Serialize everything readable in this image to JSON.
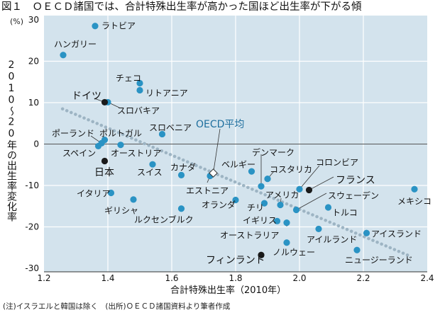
{
  "chart_data": {
    "type": "scatter",
    "title": "図１　ＯＥＣＤ諸国では、合計特殊出生率が高かった国ほど出生率が下がる傾",
    "xlabel": "合計特殊出生率（2010年）",
    "ylabel": "2010〜20年の出生率変化率",
    "yunit": "(%)",
    "xlim": [
      1.2,
      2.4
    ],
    "ylim": [
      -30,
      30
    ],
    "xticks": [
      "1.2",
      "1.4",
      "1.6",
      "1.8",
      "2.0",
      "2.2",
      "2.4"
    ],
    "yticks": [
      "30",
      "20",
      "10",
      "0",
      "-10",
      "-20",
      "-30"
    ],
    "grid": true,
    "colors": {
      "point": "#2a93c4",
      "highlight": "#1a1a1a",
      "background": "#d3e3ed",
      "trend": "#9db4c3",
      "oecd_label": "#1f6f9e"
    },
    "trendline": {
      "x": [
        1.258,
        2.338
      ],
      "y": [
        8.5,
        -26.8
      ]
    },
    "points": [
      {
        "name": "ラトビア",
        "x": 1.36,
        "y": 28.5
      },
      {
        "name": "ハンガリー",
        "x": 1.26,
        "y": 21.5
      },
      {
        "name": "チェコ",
        "x": 1.5,
        "y": 14.7
      },
      {
        "name": "リトアニア",
        "x": 1.5,
        "y": 13.0
      },
      {
        "name": "スロバキア",
        "x": 1.4,
        "y": 10.1
      },
      {
        "name": "ドイツ",
        "x": 1.39,
        "y": 10.1,
        "highlight": true
      },
      {
        "name": "スロベニア",
        "x": 1.57,
        "y": 2.4
      },
      {
        "name": "ポルトガル",
        "x": 1.39,
        "y": 1.0
      },
      {
        "name": "ポーランド",
        "x": 1.38,
        "y": 0.2
      },
      {
        "name": "スペイン",
        "x": 1.37,
        "y": -0.5
      },
      {
        "name": "オーストリア",
        "x": 1.44,
        "y": -0.2
      },
      {
        "name": "日本",
        "x": 1.39,
        "y": -4.1,
        "highlight": true
      },
      {
        "name": "スイス",
        "x": 1.54,
        "y": -4.9
      },
      {
        "name": "カナダ",
        "x": 1.63,
        "y": -7.5
      },
      {
        "name": "エストニア",
        "x": 1.72,
        "y": -7.7
      },
      {
        "name": "OECD平均",
        "x": 1.73,
        "y": -7.0,
        "average": true
      },
      {
        "name": "イタリア",
        "x": 1.41,
        "y": -11.8
      },
      {
        "name": "ギリシャ",
        "x": 1.48,
        "y": -13.4
      },
      {
        "name": "ルクセンブルク",
        "x": 1.63,
        "y": -15.6
      },
      {
        "name": "オランダ",
        "x": 1.8,
        "y": -13.5
      },
      {
        "name": "ベルギー",
        "x": 1.85,
        "y": -6.6
      },
      {
        "name": "コスタリカ",
        "x": 1.9,
        "y": -8.4
      },
      {
        "name": "デンマーク",
        "x": 1.88,
        "y": -10.2
      },
      {
        "name": "コロンビア",
        "x": 2.0,
        "y": -10.9
      },
      {
        "name": "フランス",
        "x": 2.03,
        "y": -11.1,
        "highlight": true
      },
      {
        "name": "メキシコ",
        "x": 2.36,
        "y": -10.9
      },
      {
        "name": "チリ",
        "x": 1.89,
        "y": -14.3
      },
      {
        "name": "アメリカ",
        "x": 1.94,
        "y": -14.7
      },
      {
        "name": "スウェーデン",
        "x": 1.99,
        "y": -15.9
      },
      {
        "name": "トルコ",
        "x": 2.09,
        "y": -15.3
      },
      {
        "name": "イギリス",
        "x": 1.93,
        "y": -18.6
      },
      {
        "name": "オーストラリア",
        "x": 1.96,
        "y": -19.0
      },
      {
        "name": "アイルランド",
        "x": 2.06,
        "y": -20.5
      },
      {
        "name": "アイスランド",
        "x": 2.21,
        "y": -21.5
      },
      {
        "name": "ノルウェー",
        "x": 1.96,
        "y": -23.8
      },
      {
        "name": "ニュージーランド",
        "x": 2.18,
        "y": -25.6
      },
      {
        "name": "フィンランド",
        "x": 1.88,
        "y": -26.8,
        "highlight": true
      }
    ]
  },
  "footnote": "(注)イスラエルと韓国は除く　(出所)ＯＥＣＤ諸国資料より筆者作成"
}
